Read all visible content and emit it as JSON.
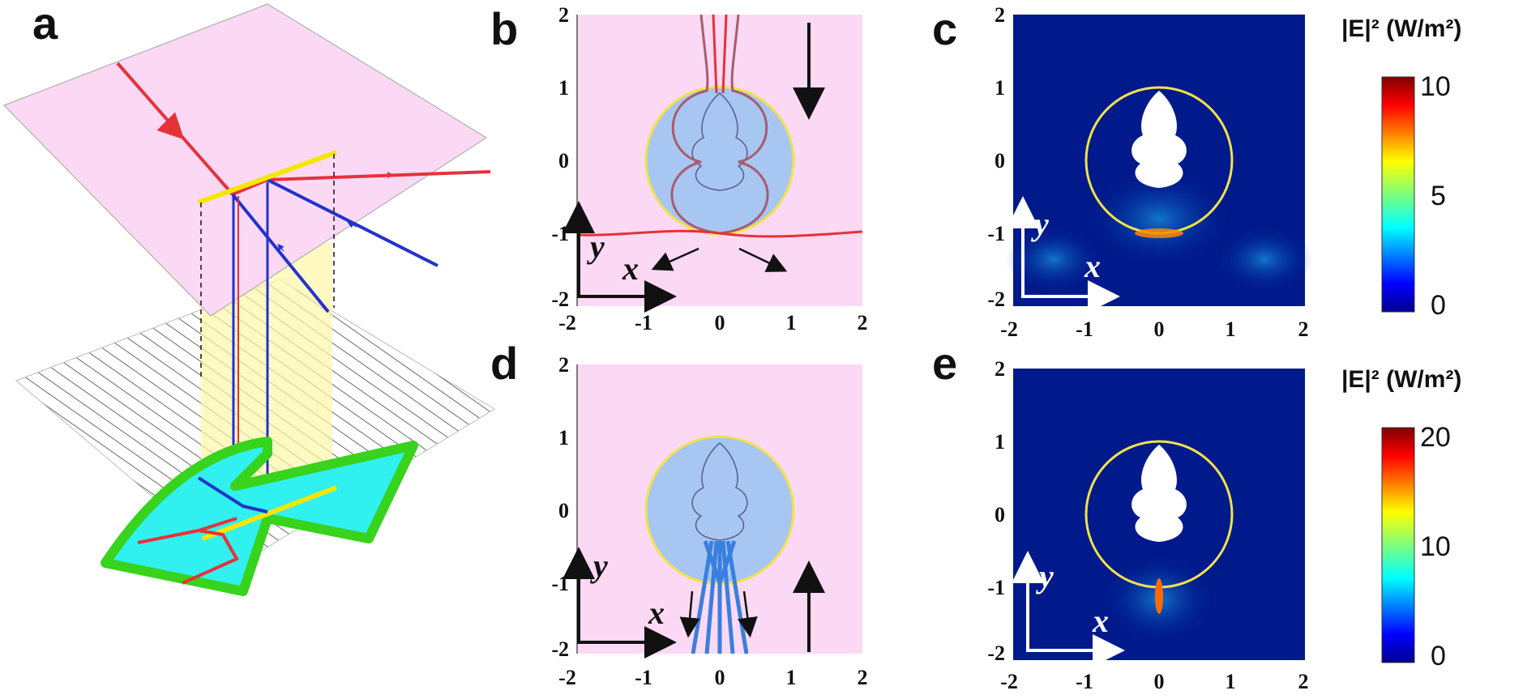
{
  "panels": {
    "a": {
      "label": "a"
    },
    "b": {
      "label": "b",
      "axis_x": "x",
      "axis_y": "y"
    },
    "c": {
      "label": "c",
      "axis_x": "x",
      "axis_y": "y"
    },
    "d": {
      "label": "d",
      "axis_x": "x",
      "axis_y": "y"
    },
    "e": {
      "label": "e",
      "axis_x": "x",
      "axis_y": "y"
    }
  },
  "ticks": {
    "x": [
      "-2",
      "-1",
      "0",
      "1",
      "2"
    ],
    "y": [
      "2",
      "1",
      "0",
      "-1",
      "-2"
    ]
  },
  "colorbars": {
    "top": {
      "title": "|E|² (W/m²)",
      "ticks": [
        "10",
        "5",
        "0"
      ],
      "range": [
        0,
        10
      ]
    },
    "bottom": {
      "title": "|E|² (W/m²)",
      "ticks": [
        "20",
        "10",
        "0"
      ],
      "range": [
        0,
        20
      ]
    }
  },
  "colors": {
    "pink_bg": "#fbd9f4",
    "device_blue": "#a7c6f2",
    "ring_yellow": "#f2e24a",
    "ray_red": "#e5323a",
    "ray_blue": "#3a7fe0",
    "field_bg": "#001a8c"
  }
}
